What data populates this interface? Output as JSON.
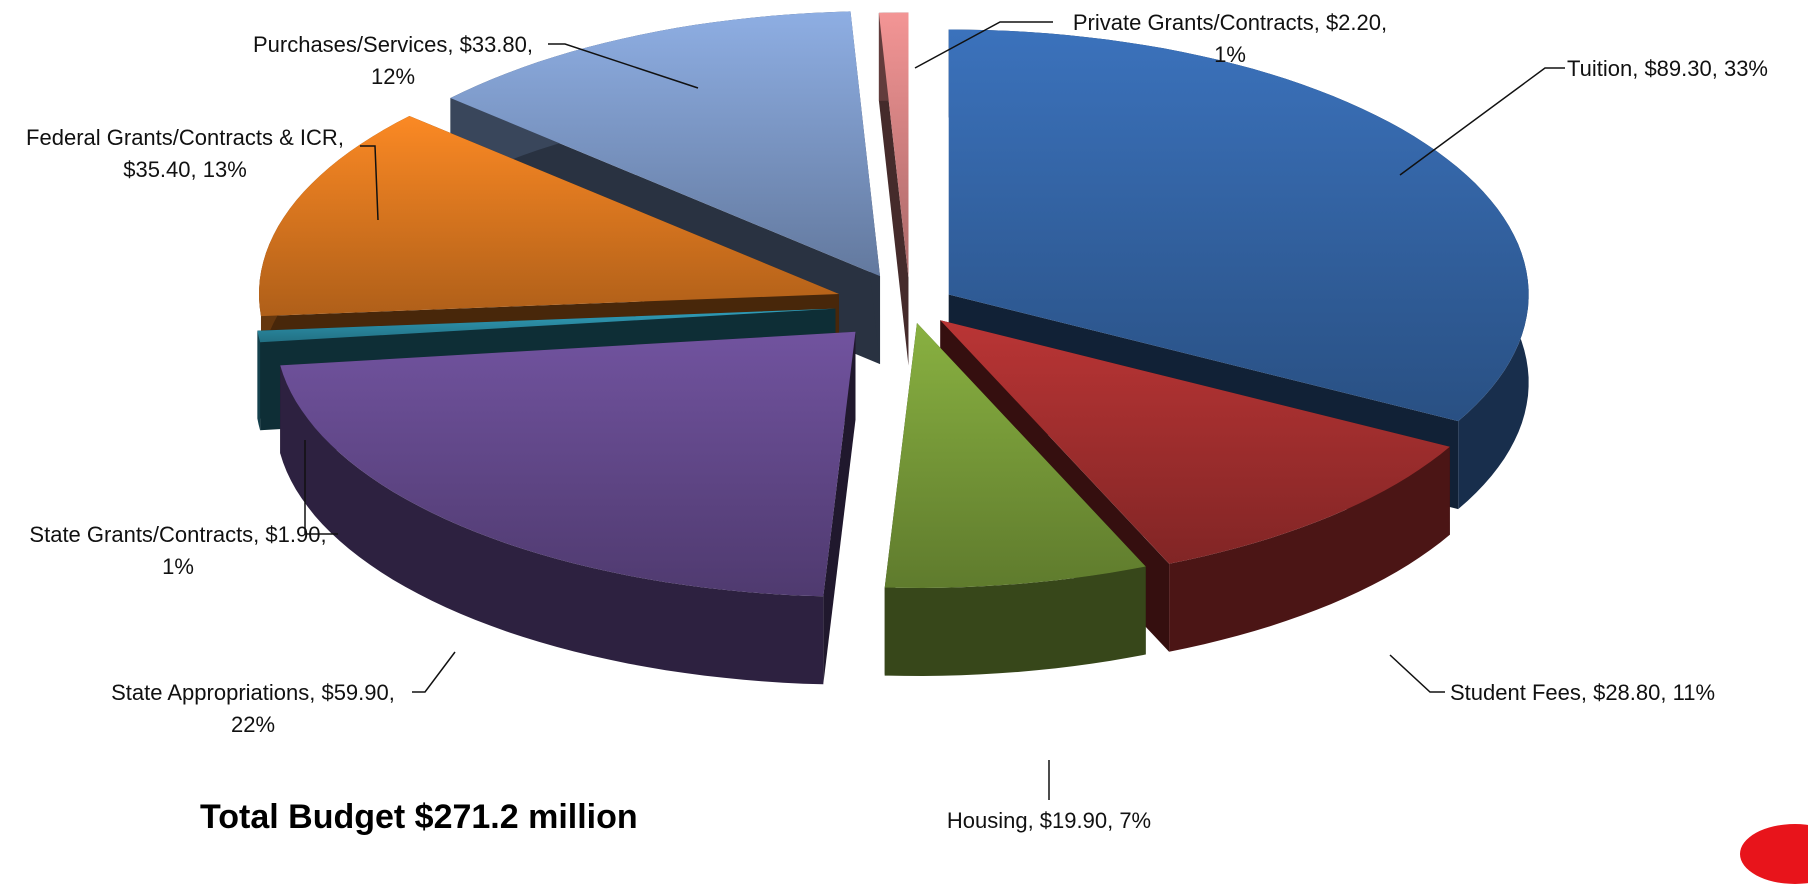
{
  "chart_data": {
    "type": "pie",
    "style": "3d-exploded",
    "slices": [
      {
        "label": "Tuition, $89.30, 33%",
        "name": "Tuition",
        "value": 89.3,
        "percent": 33,
        "color": "#3566a8"
      },
      {
        "label": "Student Fees, $28.80, 11%",
        "name": "Student Fees",
        "value": 28.8,
        "percent": 11,
        "color": "#a62f2f"
      },
      {
        "label": "Housing, $19.90, 7%",
        "name": "Housing",
        "value": 19.9,
        "percent": 7,
        "color": "#7a9e3a"
      },
      {
        "label": "State Appropriations,  $59.90, 22%",
        "name": "State Appropriations",
        "value": 59.9,
        "percent": 22,
        "color": "#654a8e"
      },
      {
        "label": "State Grants/Contracts, $1.90, 1%",
        "name": "State Grants/Contracts",
        "value": 1.9,
        "percent": 1,
        "color": "#2c8fa8"
      },
      {
        "label": "Federal Grants/Contracts & ICR, $35.40, 13%",
        "name": "Federal Grants/Contracts & ICR",
        "value": 35.4,
        "percent": 13,
        "color": "#e07a20"
      },
      {
        "label": "Purchases/Services,  $33.80, 12%",
        "name": "Purchases/Services",
        "value": 33.8,
        "percent": 12,
        "color": "#7f9bcb"
      },
      {
        "label": "Private Grants/Contracts, $2.20, 1%",
        "name": "Private Grants/Contracts",
        "value": 2.2,
        "percent": 1,
        "color": "#d98585"
      }
    ]
  },
  "footer": {
    "total": "Total Budget $271.2 million"
  },
  "labels": [
    {
      "lines": [
        "Private Grants/Contracts, $2.20,",
        "1%"
      ],
      "anchor": "middle"
    },
    {
      "lines": [
        "Tuition, $89.30, 33%"
      ],
      "anchor": "start"
    },
    {
      "lines": [
        "Purchases/Services,  $33.80,",
        "12%"
      ],
      "anchor": "middle"
    },
    {
      "lines": [
        "Federal Grants/Contracts & ICR,",
        "$35.40, 13%"
      ],
      "anchor": "middle"
    },
    {
      "lines": [
        "State Grants/Contracts, $1.90,",
        "1%"
      ],
      "anchor": "middle"
    },
    {
      "lines": [
        "State Appropriations,  $59.90,",
        "22%"
      ],
      "anchor": "middle"
    },
    {
      "lines": [
        "Housing, $19.90, 7%"
      ],
      "anchor": "middle"
    },
    {
      "lines": [
        "Student Fees, $28.80, 11%"
      ],
      "anchor": "start"
    }
  ]
}
